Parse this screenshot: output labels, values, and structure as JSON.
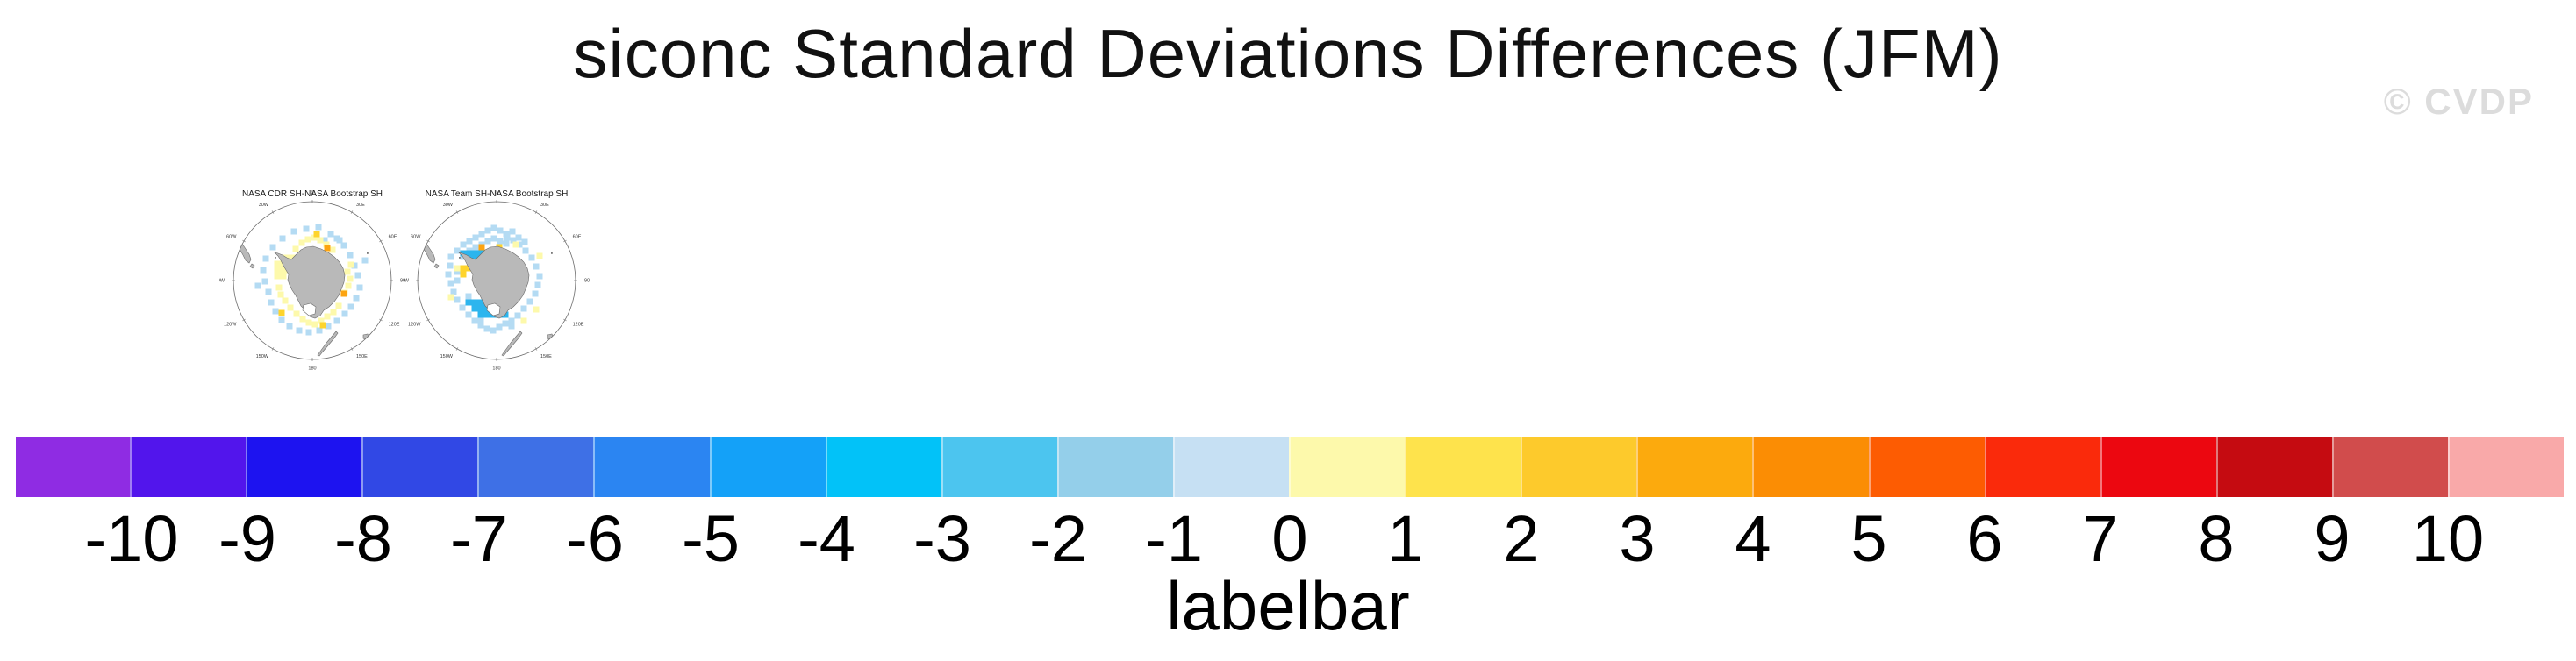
{
  "title": "siconc Standard Deviations Differences (JFM)",
  "watermark": "© CVDP",
  "chart_data": {
    "type": "heatmap",
    "description": "Two south-polar stereographic difference maps of sea-ice concentration standard deviations, with shared discrete labelbar",
    "lon_labels": [
      "0",
      "30E",
      "60E",
      "90E",
      "120E",
      "150E",
      "180",
      "150W",
      "120W",
      "90W",
      "60W",
      "30W"
    ],
    "panels": [
      {
        "title": "NASA CDR SH-NASA Bootstrap SH",
        "cells": {
          "b1": [
            [
              -21,
              -56
            ],
            [
              -7,
              -59
            ],
            [
              7,
              -61
            ],
            [
              21,
              -53
            ],
            [
              31,
              -46
            ],
            [
              -34,
              -48
            ],
            [
              -45,
              -38
            ],
            [
              -53,
              -25
            ],
            [
              -56,
              -12
            ],
            [
              -54,
              1
            ],
            [
              -50,
              13
            ],
            [
              -47,
              25
            ],
            [
              -42,
              35
            ],
            [
              -35,
              45
            ],
            [
              -26,
              52
            ],
            [
              -15,
              57
            ],
            [
              -4,
              59
            ],
            [
              8,
              57
            ],
            [
              18,
              52
            ],
            [
              28,
              46
            ],
            [
              37,
              38
            ],
            [
              44,
              30
            ],
            [
              50,
              20
            ],
            [
              54,
              8
            ],
            [
              52,
              -6
            ],
            [
              48,
              -17
            ],
            [
              43,
              -29
            ],
            [
              36,
              -40
            ],
            [
              28,
              -48
            ],
            [
              -62,
              6
            ],
            [
              60,
              -23
            ],
            [
              14,
              -46
            ]
          ],
          "y1": [
            [
              -33,
              -26
            ],
            [
              -26,
              -26
            ],
            [
              -19,
              -26
            ],
            [
              -12,
              -26
            ],
            [
              -33,
              -19
            ],
            [
              -26,
              -19
            ],
            [
              -19,
              -19
            ],
            [
              -33,
              -12
            ],
            [
              -26,
              -12
            ],
            [
              -40,
              -19
            ],
            [
              -40,
              -12
            ],
            [
              -40,
              -5
            ],
            [
              -33,
              -5
            ],
            [
              -5,
              -47
            ],
            [
              2,
              -49
            ],
            [
              9,
              -46
            ],
            [
              -12,
              -43
            ],
            [
              16,
              -41
            ],
            [
              -19,
              -36
            ],
            [
              23,
              -35
            ],
            [
              40,
              -10
            ],
            [
              43,
              -2
            ],
            [
              41,
              6
            ],
            [
              37,
              14
            ],
            [
              44,
              -18
            ],
            [
              -36,
              16
            ],
            [
              -31,
              23
            ],
            [
              -25,
              31
            ],
            [
              -18,
              38
            ],
            [
              -11,
              44
            ],
            [
              -4,
              48
            ],
            [
              3,
              50
            ],
            [
              10,
              46
            ],
            [
              17,
              41
            ],
            [
              -38,
              8
            ],
            [
              24,
              36
            ],
            [
              30,
              29
            ]
          ],
          "y2": [
            [
              5,
              -53
            ],
            [
              -35,
              37
            ],
            [
              12,
              51
            ]
          ],
          "o1": [
            [
              17,
              -37
            ],
            [
              36,
              15
            ]
          ]
        }
      },
      {
        "title": "NASA Team SH-NASA Bootstrap SH",
        "cells": {
          "b1": [
            [
              -17,
              -53
            ],
            [
              -10,
              -57
            ],
            [
              -3,
              -60
            ],
            [
              4,
              -57
            ],
            [
              11,
              -53
            ],
            [
              18,
              -56
            ],
            [
              -24,
              -49
            ],
            [
              -31,
              -45
            ],
            [
              25,
              -49
            ],
            [
              32,
              -44
            ],
            [
              -38,
              -41
            ],
            [
              -45,
              -34
            ],
            [
              -52,
              -27
            ],
            [
              -53,
              -17
            ],
            [
              -55,
              -7
            ],
            [
              -52,
              3
            ],
            [
              -49,
              13
            ],
            [
              -45,
              -10
            ],
            [
              -45,
              0
            ],
            [
              -45,
              22
            ],
            [
              -39,
              31
            ],
            [
              -32,
              39
            ],
            [
              -25,
              46
            ],
            [
              -18,
              51
            ],
            [
              -11,
              55
            ],
            [
              -4,
              57
            ],
            [
              3,
              53
            ],
            [
              10,
              49
            ],
            [
              17,
              46
            ],
            [
              24,
              40
            ],
            [
              31,
              32
            ],
            [
              38,
              24
            ],
            [
              44,
              15
            ],
            [
              47,
              5
            ],
            [
              49,
              -5
            ],
            [
              45,
              -16
            ],
            [
              40,
              -26
            ],
            [
              33,
              -34
            ],
            [
              26,
              -41
            ],
            [
              19,
              -46
            ],
            [
              12,
              -49
            ],
            [
              -10,
              -45
            ],
            [
              -3,
              -48
            ],
            [
              4,
              -45
            ],
            [
              -17,
              -41
            ],
            [
              -24,
              -38
            ],
            [
              11,
              -42
            ],
            [
              -31,
              -34
            ],
            [
              -38,
              -27
            ],
            [
              -32,
              18
            ],
            [
              17,
              52
            ],
            [
              -18,
              44
            ]
          ],
          "b3": [
            [
              -38,
              -31
            ],
            [
              -31,
              -31
            ],
            [
              -24,
              -31
            ],
            [
              -17,
              -31
            ],
            [
              -24,
              -24
            ],
            [
              -17,
              -24
            ],
            [
              -10,
              -24
            ],
            [
              -17,
              -17
            ],
            [
              -10,
              -17
            ],
            [
              -10,
              -31
            ],
            [
              -31,
              -24
            ],
            [
              -25,
              25
            ],
            [
              -18,
              25
            ],
            [
              -11,
              25
            ],
            [
              -4,
              25
            ],
            [
              -18,
              32
            ],
            [
              -11,
              32
            ],
            [
              -4,
              32
            ],
            [
              -25,
              32
            ],
            [
              -11,
              39
            ],
            [
              -4,
              39
            ],
            [
              3,
              39
            ],
            [
              -18,
              39
            ],
            [
              3,
              32
            ],
            [
              -32,
              25
            ],
            [
              10,
              39
            ]
          ],
          "y1": [
            [
              -52,
              19
            ],
            [
              31,
              46
            ],
            [
              49,
              -28
            ],
            [
              22,
              -41
            ],
            [
              45,
              33
            ],
            [
              -45,
              -14
            ]
          ],
          "y2": [
            [
              -38,
              -14
            ],
            [
              -31,
              -14
            ],
            [
              -38,
              -7
            ],
            [
              -24,
              -14
            ],
            [
              3,
              -38
            ]
          ],
          "o1": [
            [
              -17,
              -38
            ]
          ]
        }
      }
    ],
    "labelbar": {
      "title": "labelbar",
      "ticks": [
        "-10",
        "-9",
        "-8",
        "-7",
        "-6",
        "-5",
        "-4",
        "-3",
        "-2",
        "-1",
        "0",
        "1",
        "2",
        "3",
        "4",
        "5",
        "6",
        "7",
        "8",
        "9",
        "10"
      ],
      "colors": [
        "#8f2ce3",
        "#5215ec",
        "#1d13f0",
        "#3148e5",
        "#3e70e6",
        "#2b85f2",
        "#14a1f8",
        "#02c2f8",
        "#4cc5ef",
        "#94cfea",
        "#c6e0f3",
        "#fdf9ab",
        "#fee34c",
        "#fdca2c",
        "#fcaa0d",
        "#fb8d04",
        "#fd5c02",
        "#fa2a0b",
        "#ec0710",
        "#c50b11",
        "#d14c4c",
        "#f9a9a9"
      ]
    },
    "palette": {
      "b1": "#b4dbf3",
      "b3": "#2cb5ee",
      "y1": "#fdf9ab",
      "y2": "#fed42c",
      "o1": "#fca411",
      "land": "#b9b9b9",
      "coast": "#6a6a6a"
    }
  }
}
